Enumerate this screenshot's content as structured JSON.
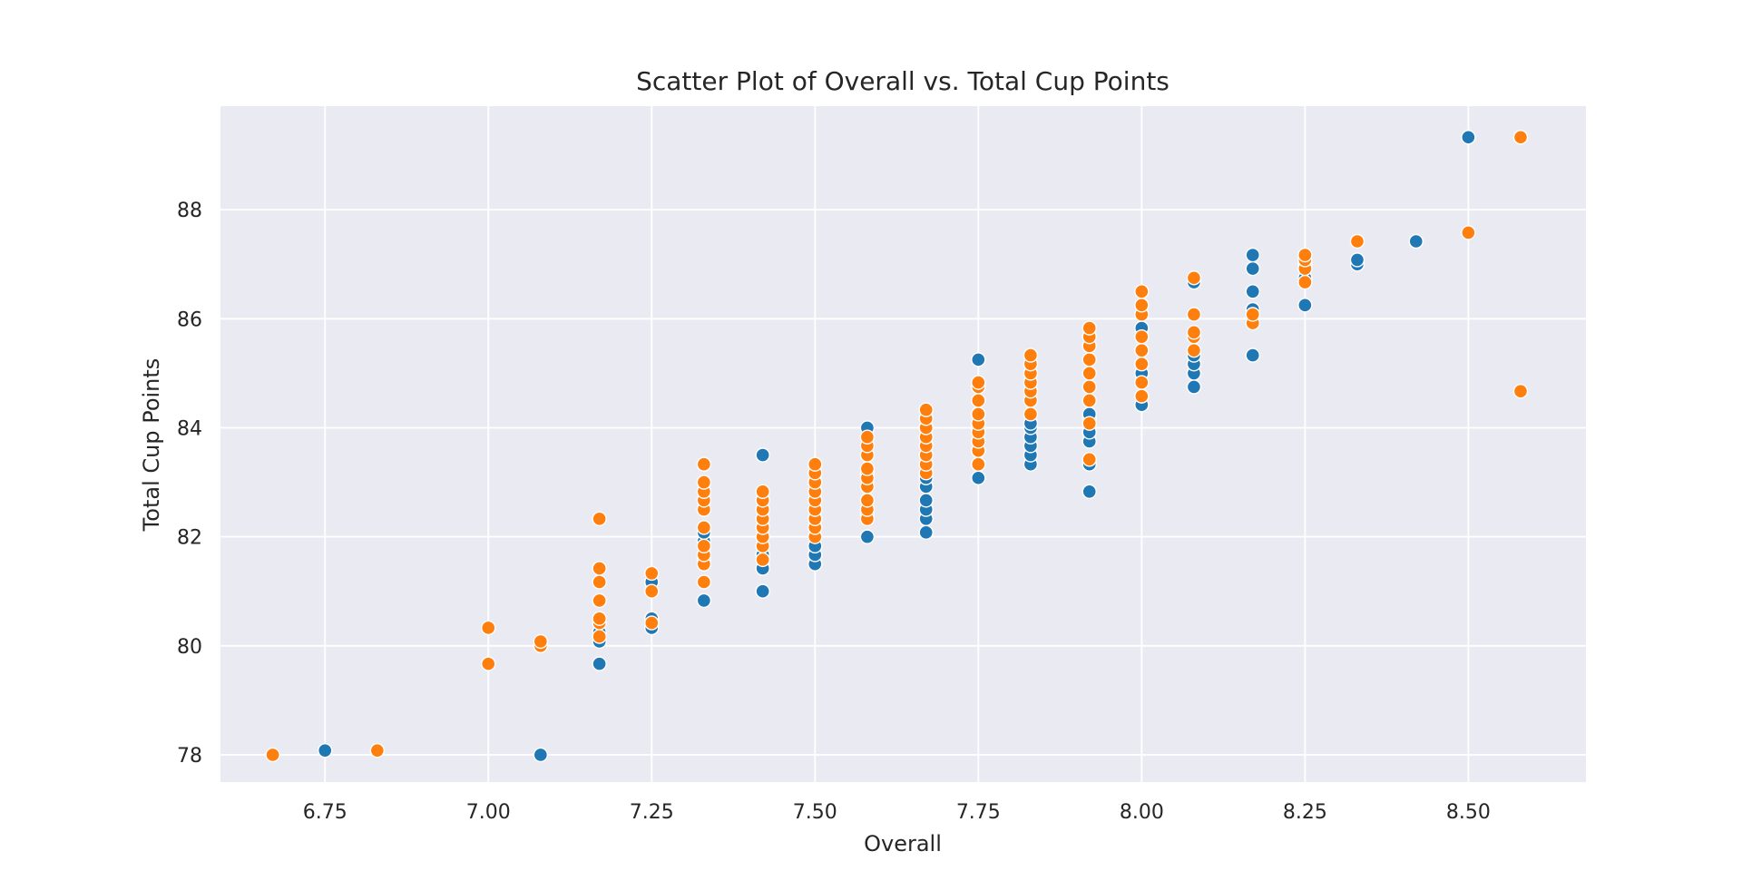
{
  "chart_data": {
    "type": "scatter",
    "title": "Scatter Plot of Overall vs. Total Cup Points",
    "xlabel": "Overall",
    "ylabel": "Total Cup Points",
    "xlim": [
      6.59,
      8.68
    ],
    "ylim": [
      77.5,
      89.9
    ],
    "xticks": [
      6.75,
      7.0,
      7.25,
      7.5,
      7.75,
      8.0,
      8.25,
      8.5
    ],
    "xtick_labels": [
      "6.75",
      "7.00",
      "7.25",
      "7.50",
      "7.75",
      "8.00",
      "8.25",
      "8.50"
    ],
    "yticks": [
      78,
      80,
      82,
      84,
      86,
      88
    ],
    "ytick_labels": [
      "78",
      "80",
      "82",
      "84",
      "86",
      "88"
    ],
    "grid": true,
    "legend": "none",
    "series": [
      {
        "color": "#1f77b4",
        "points": [
          [
            6.75,
            78.08
          ],
          [
            7.08,
            78.0
          ],
          [
            7.17,
            79.67
          ],
          [
            7.17,
            80.08
          ],
          [
            7.17,
            80.25
          ],
          [
            7.25,
            80.33
          ],
          [
            7.25,
            80.5
          ],
          [
            7.25,
            81.17
          ],
          [
            7.33,
            80.83
          ],
          [
            7.33,
            81.58
          ],
          [
            7.33,
            81.92
          ],
          [
            7.33,
            82.08
          ],
          [
            7.42,
            81.0
          ],
          [
            7.42,
            81.42
          ],
          [
            7.42,
            81.67
          ],
          [
            7.42,
            83.5
          ],
          [
            7.5,
            81.5
          ],
          [
            7.5,
            81.67
          ],
          [
            7.5,
            81.83
          ],
          [
            7.5,
            82.17
          ],
          [
            7.5,
            82.33
          ],
          [
            7.58,
            82.0
          ],
          [
            7.58,
            82.42
          ],
          [
            7.58,
            83.17
          ],
          [
            7.58,
            84.0
          ],
          [
            7.67,
            82.08
          ],
          [
            7.67,
            82.33
          ],
          [
            7.67,
            82.5
          ],
          [
            7.67,
            82.67
          ],
          [
            7.67,
            82.92
          ],
          [
            7.67,
            83.08
          ],
          [
            7.67,
            84.0
          ],
          [
            7.75,
            83.08
          ],
          [
            7.75,
            83.33
          ],
          [
            7.75,
            83.58
          ],
          [
            7.75,
            84.0
          ],
          [
            7.75,
            84.25
          ],
          [
            7.75,
            85.25
          ],
          [
            7.83,
            83.33
          ],
          [
            7.83,
            83.5
          ],
          [
            7.83,
            83.67
          ],
          [
            7.83,
            83.83
          ],
          [
            7.83,
            84.0
          ],
          [
            7.83,
            84.08
          ],
          [
            7.92,
            82.83
          ],
          [
            7.92,
            83.33
          ],
          [
            7.92,
            83.75
          ],
          [
            7.92,
            83.92
          ],
          [
            7.92,
            84.17
          ],
          [
            7.92,
            84.25
          ],
          [
            8.0,
            84.42
          ],
          [
            8.0,
            84.58
          ],
          [
            8.0,
            85.0
          ],
          [
            8.0,
            85.42
          ],
          [
            8.0,
            85.83
          ],
          [
            8.08,
            84.75
          ],
          [
            8.08,
            85.0
          ],
          [
            8.08,
            85.17
          ],
          [
            8.08,
            85.33
          ],
          [
            8.08,
            86.67
          ],
          [
            8.17,
            85.33
          ],
          [
            8.17,
            86.17
          ],
          [
            8.17,
            86.5
          ],
          [
            8.17,
            86.92
          ],
          [
            8.17,
            87.17
          ],
          [
            8.25,
            86.25
          ],
          [
            8.25,
            86.75
          ],
          [
            8.25,
            87.0
          ],
          [
            8.33,
            87.0
          ],
          [
            8.33,
            87.08
          ],
          [
            8.42,
            87.42
          ],
          [
            8.5,
            89.33
          ]
        ]
      },
      {
        "color": "#ff7f0e",
        "points": [
          [
            6.67,
            78.0
          ],
          [
            6.83,
            78.08
          ],
          [
            7.0,
            79.67
          ],
          [
            7.0,
            80.33
          ],
          [
            7.08,
            80.0
          ],
          [
            7.08,
            80.08
          ],
          [
            7.17,
            80.17
          ],
          [
            7.17,
            80.42
          ],
          [
            7.17,
            80.5
          ],
          [
            7.17,
            80.83
          ],
          [
            7.17,
            81.17
          ],
          [
            7.17,
            81.42
          ],
          [
            7.17,
            82.33
          ],
          [
            7.25,
            80.42
          ],
          [
            7.25,
            81.0
          ],
          [
            7.25,
            81.33
          ],
          [
            7.33,
            81.17
          ],
          [
            7.33,
            81.5
          ],
          [
            7.33,
            81.67
          ],
          [
            7.33,
            81.83
          ],
          [
            7.33,
            82.17
          ],
          [
            7.33,
            82.5
          ],
          [
            7.33,
            82.67
          ],
          [
            7.33,
            82.83
          ],
          [
            7.33,
            83.0
          ],
          [
            7.33,
            83.33
          ],
          [
            7.42,
            81.58
          ],
          [
            7.42,
            81.83
          ],
          [
            7.42,
            82.0
          ],
          [
            7.42,
            82.17
          ],
          [
            7.42,
            82.33
          ],
          [
            7.42,
            82.5
          ],
          [
            7.42,
            82.67
          ],
          [
            7.42,
            82.83
          ],
          [
            7.5,
            82.0
          ],
          [
            7.5,
            82.17
          ],
          [
            7.5,
            82.33
          ],
          [
            7.5,
            82.5
          ],
          [
            7.5,
            82.67
          ],
          [
            7.5,
            82.83
          ],
          [
            7.5,
            83.0
          ],
          [
            7.5,
            83.17
          ],
          [
            7.5,
            83.33
          ],
          [
            7.58,
            82.33
          ],
          [
            7.58,
            82.5
          ],
          [
            7.58,
            82.67
          ],
          [
            7.58,
            82.92
          ],
          [
            7.58,
            83.08
          ],
          [
            7.58,
            83.25
          ],
          [
            7.58,
            83.5
          ],
          [
            7.58,
            83.67
          ],
          [
            7.58,
            83.83
          ],
          [
            7.67,
            83.17
          ],
          [
            7.67,
            83.33
          ],
          [
            7.67,
            83.5
          ],
          [
            7.67,
            83.67
          ],
          [
            7.67,
            83.83
          ],
          [
            7.67,
            84.0
          ],
          [
            7.67,
            84.17
          ],
          [
            7.67,
            84.33
          ],
          [
            7.75,
            83.33
          ],
          [
            7.75,
            83.58
          ],
          [
            7.75,
            83.75
          ],
          [
            7.75,
            83.92
          ],
          [
            7.75,
            84.08
          ],
          [
            7.75,
            84.25
          ],
          [
            7.75,
            84.5
          ],
          [
            7.75,
            84.75
          ],
          [
            7.75,
            84.83
          ],
          [
            7.83,
            84.25
          ],
          [
            7.83,
            84.5
          ],
          [
            7.83,
            84.67
          ],
          [
            7.83,
            84.83
          ],
          [
            7.83,
            85.0
          ],
          [
            7.83,
            85.17
          ],
          [
            7.83,
            85.33
          ],
          [
            7.92,
            83.42
          ],
          [
            7.92,
            84.08
          ],
          [
            7.92,
            84.5
          ],
          [
            7.92,
            84.75
          ],
          [
            7.92,
            85.0
          ],
          [
            7.92,
            85.25
          ],
          [
            7.92,
            85.5
          ],
          [
            7.92,
            85.67
          ],
          [
            7.92,
            85.83
          ],
          [
            8.0,
            84.58
          ],
          [
            8.0,
            84.83
          ],
          [
            8.0,
            85.17
          ],
          [
            8.0,
            85.42
          ],
          [
            8.0,
            85.67
          ],
          [
            8.0,
            86.08
          ],
          [
            8.0,
            86.25
          ],
          [
            8.0,
            86.5
          ],
          [
            8.08,
            85.42
          ],
          [
            8.08,
            85.67
          ],
          [
            8.08,
            85.75
          ],
          [
            8.08,
            86.08
          ],
          [
            8.08,
            86.75
          ],
          [
            8.17,
            85.92
          ],
          [
            8.17,
            86.08
          ],
          [
            8.25,
            86.67
          ],
          [
            8.25,
            86.92
          ],
          [
            8.25,
            87.08
          ],
          [
            8.25,
            87.17
          ],
          [
            8.33,
            87.42
          ],
          [
            8.5,
            87.58
          ],
          [
            8.58,
            84.67
          ],
          [
            8.58,
            89.33
          ]
        ]
      }
    ]
  }
}
